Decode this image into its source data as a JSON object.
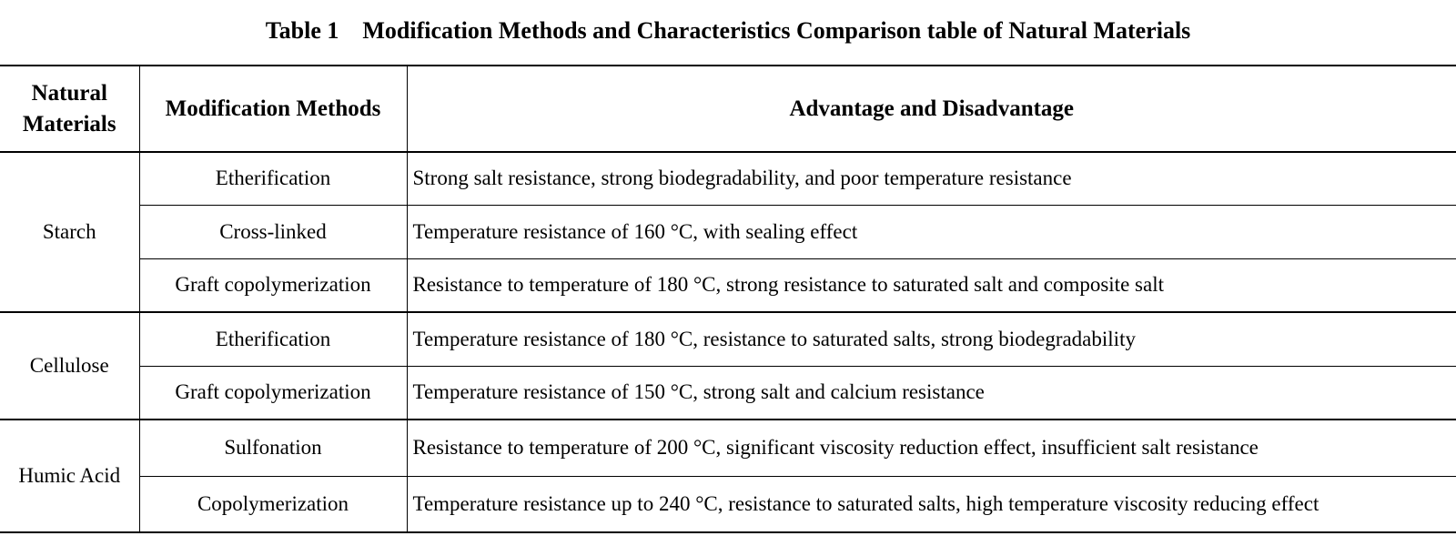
{
  "caption": "Table 1    Modification Methods and Characteristics Comparison table of Natural Materials",
  "headers": {
    "material": "Natural Materials",
    "method": "Modification Methods",
    "advantage": "Advantage and Disadvantage"
  },
  "groups": [
    {
      "material": "Starch",
      "rows": [
        {
          "method": "Etherification",
          "advantage": "Strong salt resistance, strong biodegradability, and poor temperature resistance"
        },
        {
          "method": "Cross-linked",
          "advantage": "Temperature resistance of 160 °C, with sealing effect"
        },
        {
          "method": "Graft copolymerization",
          "advantage": "Resistance to temperature of 180 °C, strong resistance to saturated salt and composite salt"
        }
      ]
    },
    {
      "material": "Cellulose",
      "rows": [
        {
          "method": "Etherification",
          "advantage": "Temperature resistance of 180 °C, resistance to saturated salts, strong biodegradability"
        },
        {
          "method": "Graft copolymerization",
          "advantage": "Temperature resistance of 150 °C, strong salt and calcium resistance"
        }
      ]
    },
    {
      "material": "Humic Acid",
      "rows": [
        {
          "method": "Sulfonation",
          "advantage": "Resistance to temperature of 200 °C, significant viscosity reduction effect, insufficient salt resistance"
        },
        {
          "method": "Copolymerization",
          "advantage": "Temperature resistance up to 240 °C, resistance to saturated salts, high temperature viscosity reducing effect"
        }
      ]
    }
  ]
}
